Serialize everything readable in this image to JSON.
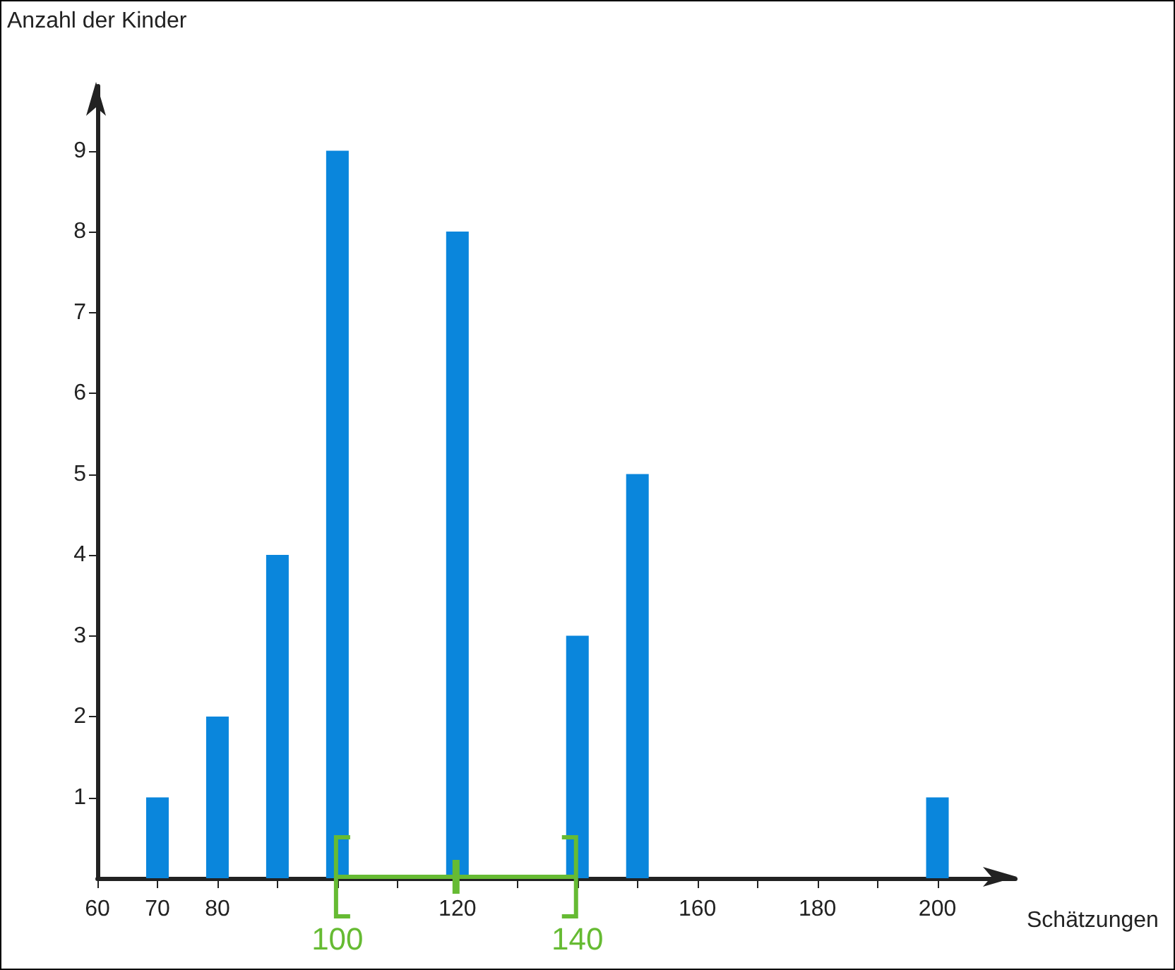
{
  "chart_data": {
    "type": "bar",
    "ylabel": "Anzahl der Kinder",
    "xlabel": "Schätzungen",
    "x": [
      70,
      80,
      90,
      100,
      120,
      140,
      150,
      200
    ],
    "values": [
      1,
      2,
      4,
      9,
      8,
      3,
      5,
      1
    ],
    "color": "#0a86dc",
    "xlim": [
      60,
      213
    ],
    "ylim": [
      0,
      9.8
    ],
    "xticks": [
      60,
      70,
      80,
      {
        "value": 90,
        "label": null
      },
      {
        "value": 100,
        "label": null
      },
      {
        "value": 110,
        "label": null
      },
      120,
      {
        "value": 130,
        "label": null
      },
      {
        "value": 140,
        "label": null
      },
      {
        "value": 150,
        "label": null
      },
      160,
      {
        "value": 170,
        "label": null
      },
      180,
      {
        "value": 190,
        "label": null
      },
      200
    ],
    "yticks": [
      1,
      2,
      3,
      4,
      5,
      6,
      7,
      8,
      9
    ],
    "annotations": [
      {
        "text": "100",
        "x": 100,
        "y": 0
      },
      {
        "text": "140",
        "x": 140,
        "y": 0
      }
    ]
  }
}
